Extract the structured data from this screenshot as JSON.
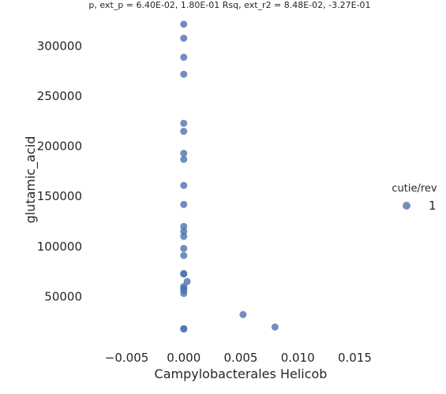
{
  "chart_data": {
    "type": "scatter",
    "title": "p, ext_p = 6.40E-02, 1.80E-01 Rsq, ext_r2 = 8.48E-02, -3.27E-01",
    "xlabel": "Campylobacterales Helicob",
    "ylabel": "glutamic_acid",
    "xlim": [
      -0.0085,
      0.0185
    ],
    "ylim": [
      3000,
      332000
    ],
    "xticks": [
      -0.005,
      0.0,
      0.005,
      0.01,
      0.015
    ],
    "xtick_labels": [
      "−0.005",
      "0.000",
      "0.005",
      "0.010",
      "0.015"
    ],
    "yticks": [
      50000,
      100000,
      150000,
      200000,
      250000,
      300000
    ],
    "ytick_labels": [
      "50000",
      "100000",
      "150000",
      "200000",
      "250000",
      "300000"
    ],
    "grid": false,
    "legend_position": "right",
    "legend_title": "cutie/rev",
    "series": [
      {
        "name": "1",
        "color": "#4c72b0",
        "points": [
          {
            "x": 0.0,
            "y": 322000
          },
          {
            "x": 0.0,
            "y": 308000
          },
          {
            "x": 0.0,
            "y": 289000
          },
          {
            "x": 0.0,
            "y": 272000
          },
          {
            "x": 0.0,
            "y": 223000
          },
          {
            "x": 0.0,
            "y": 215000
          },
          {
            "x": 0.0,
            "y": 193000
          },
          {
            "x": 0.0,
            "y": 187000
          },
          {
            "x": 0.0,
            "y": 161000
          },
          {
            "x": 0.0,
            "y": 142000
          },
          {
            "x": 0.0,
            "y": 120000
          },
          {
            "x": 0.0,
            "y": 115000
          },
          {
            "x": 0.0,
            "y": 110000
          },
          {
            "x": 0.0,
            "y": 98000
          },
          {
            "x": 0.0,
            "y": 91000
          },
          {
            "x": 0.0,
            "y": 73000
          },
          {
            "x": 0.0,
            "y": 72500
          },
          {
            "x": 0.0003,
            "y": 65000
          },
          {
            "x": 0.0,
            "y": 60000
          },
          {
            "x": 0.0,
            "y": 58000
          },
          {
            "x": 0.0,
            "y": 56000
          },
          {
            "x": 0.0,
            "y": 53000
          },
          {
            "x": 0.0,
            "y": 18000
          },
          {
            "x": 0.0,
            "y": 17500
          },
          {
            "x": 0.0052,
            "y": 32000
          },
          {
            "x": 0.008,
            "y": 19500
          }
        ]
      }
    ]
  }
}
